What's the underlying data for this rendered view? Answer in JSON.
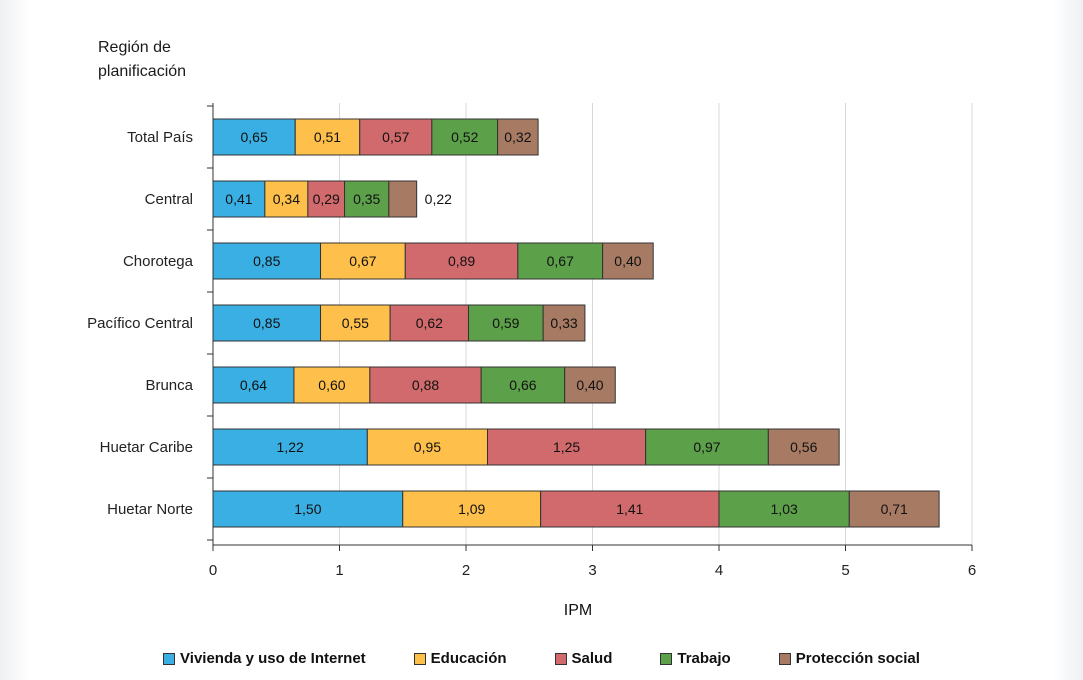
{
  "chart_data": {
    "type": "bar",
    "orientation": "horizontal",
    "stacked": true,
    "ytitle": "Región de planificación",
    "xlabel": "IPM",
    "xlim": [
      0,
      6
    ],
    "xticks": [
      "0",
      "1",
      "2",
      "3",
      "4",
      "5",
      "6"
    ],
    "grid": true,
    "legend_position": "bottom",
    "categories": [
      "Total País",
      "Central",
      "Chorotega",
      "Pacífico Central",
      "Brunca",
      "Huetar Caribe",
      "Huetar Norte"
    ],
    "series": [
      {
        "name": "Vivienda y uso de Internet",
        "color": "#3aafe3",
        "values": [
          0.65,
          0.41,
          0.85,
          0.85,
          0.64,
          1.22,
          1.5
        ],
        "labels": [
          "0,65",
          "0,41",
          "0,85",
          "0,85",
          "0,64",
          "1,22",
          "1,50"
        ]
      },
      {
        "name": "Educación",
        "color": "#fec04a",
        "values": [
          0.51,
          0.34,
          0.67,
          0.55,
          0.6,
          0.95,
          1.09
        ],
        "labels": [
          "0,51",
          "0,34",
          "0,67",
          "0,55",
          "0,60",
          "0,95",
          "1,09"
        ]
      },
      {
        "name": "Salud",
        "color": "#d16a6c",
        "values": [
          0.57,
          0.29,
          0.89,
          0.62,
          0.88,
          1.25,
          1.41
        ],
        "labels": [
          "0,57",
          "0,29",
          "0,89",
          "0,62",
          "0,88",
          "1,25",
          "1,41"
        ]
      },
      {
        "name": "Trabajo",
        "color": "#5da04a",
        "values": [
          0.52,
          0.35,
          0.67,
          0.59,
          0.66,
          0.97,
          1.03
        ],
        "labels": [
          "0,52",
          "0,35",
          "0,67",
          "0,59",
          "0,66",
          "0,97",
          "1,03"
        ]
      },
      {
        "name": "Protección social",
        "color": "#a77a63",
        "values": [
          0.32,
          0.22,
          0.4,
          0.33,
          0.4,
          0.56,
          0.71
        ],
        "labels": [
          "0,32",
          "0,22",
          "0,40",
          "0,33",
          "0,40",
          "0,56",
          "0,71"
        ]
      }
    ]
  }
}
